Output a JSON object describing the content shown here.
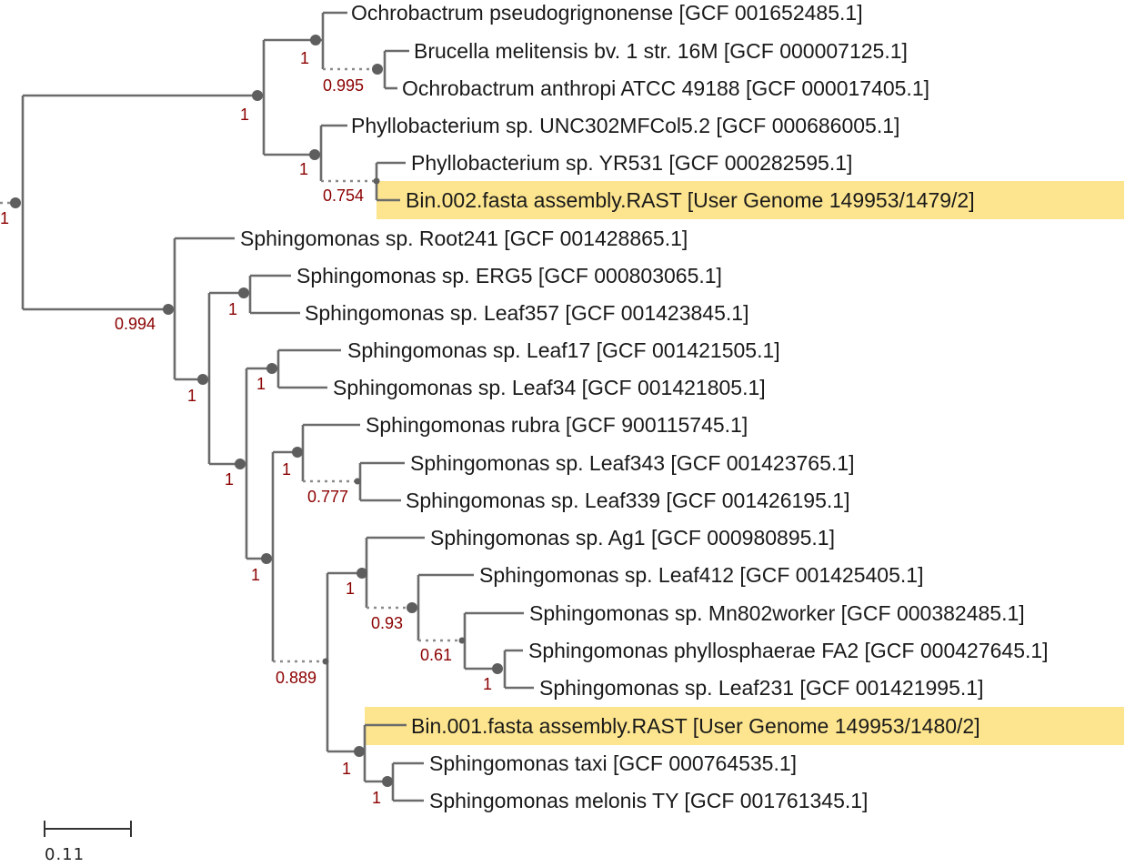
{
  "scale_bar": {
    "label": "0.11"
  },
  "leaves": [
    "Ochrobactrum pseudogrignonense [GCF 001652485.1]",
    "Brucella melitensis bv. 1 str. 16M [GCF 000007125.1]",
    "Ochrobactrum anthropi ATCC 49188 [GCF 000017405.1]",
    "Phyllobacterium sp. UNC302MFCol5.2 [GCF 000686005.1]",
    "Phyllobacterium sp. YR531 [GCF 000282595.1]",
    "Bin.002.fasta assembly.RAST [User Genome 149953/1479/2]",
    "Sphingomonas sp. Root241 [GCF 001428865.1]",
    "Sphingomonas sp. ERG5 [GCF 000803065.1]",
    "Sphingomonas sp. Leaf357 [GCF 001423845.1]",
    "Sphingomonas sp. Leaf17 [GCF 001421505.1]",
    "Sphingomonas sp. Leaf34 [GCF 001421805.1]",
    "Sphingomonas rubra [GCF 900115745.1]",
    "Sphingomonas sp. Leaf343 [GCF 001423765.1]",
    "Sphingomonas sp. Leaf339 [GCF 001426195.1]",
    "Sphingomonas sp. Ag1 [GCF 000980895.1]",
    "Sphingomonas sp. Leaf412 [GCF 001425405.1]",
    "Sphingomonas sp. Mn802worker [GCF 000382485.1]",
    "Sphingomonas phyllosphaerae FA2 [GCF 000427645.1]",
    "Sphingomonas sp. Leaf231 [GCF 001421995.1]",
    "Bin.001.fasta assembly.RAST [User Genome 149953/1480/2]",
    "Sphingomonas taxi [GCF 000764535.1]",
    "Sphingomonas melonis TY [GCF 001761345.1]"
  ],
  "highlighted_leaves": [
    5,
    19
  ],
  "highlight_color": "#fde58f",
  "support_values": {
    "root": "1",
    "alpha_clade": "1",
    "ochrobactrum_clade": "1",
    "brucella_anthropi": "0.995",
    "phyllobacterium_clade": "1",
    "yr531_bin002": "0.754",
    "sphingomonas_clade": "0.994",
    "erg5_leaf357": "1",
    "sphingo_inner": "1",
    "leaf17_leaf34": "1",
    "sphingo_inner2": "1",
    "rubra_clade": "1",
    "leaf343_leaf339": "0.777",
    "sphingo_inner3": "1",
    "ag1_clade": "1",
    "leaf412_clade": "0.93",
    "mn802_clade": "0.61",
    "fa2_leaf231": "1",
    "sphingo_inner4": "0.889",
    "bin001_clade": "1",
    "taxi_melonis": "1"
  }
}
